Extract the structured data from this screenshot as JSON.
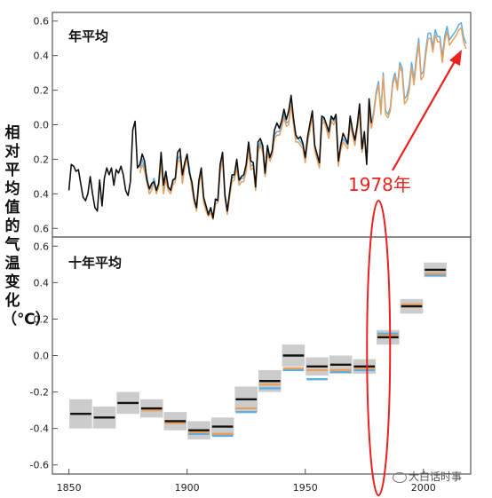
{
  "ylabel": "相对平均值的气温变化（℃）",
  "watermark": "大白话时事",
  "annotation": {
    "text": "1978年",
    "color": "#e8221e",
    "year": 1978
  },
  "chart_data": [
    {
      "type": "line",
      "title": "年平均",
      "x_range": [
        1843,
        2020
      ],
      "ylim": [
        -0.65,
        0.65
      ],
      "y_ticks": [
        0.6,
        0.4,
        0.2,
        0.0,
        -0.2,
        -0.4,
        -0.6
      ],
      "y_tick_labels": [
        "0.6",
        "0.4",
        "0.2",
        "0.0",
        "0.2",
        "0.4",
        "0.6"
      ],
      "grid": false,
      "series": [
        {
          "color": "#111111",
          "x": [
            1850,
            1851,
            1852,
            1853,
            1854,
            1855,
            1856,
            1857,
            1858,
            1859,
            1860,
            1861,
            1862,
            1863,
            1864,
            1865,
            1866,
            1867,
            1868,
            1869,
            1870,
            1871,
            1872,
            1873,
            1874,
            1875,
            1876,
            1877,
            1878,
            1879,
            1880,
            1881,
            1882,
            1883,
            1884,
            1885,
            1886,
            1887,
            1888,
            1889,
            1890,
            1891,
            1892,
            1893,
            1894,
            1895,
            1896,
            1897,
            1898,
            1899,
            1900,
            1901,
            1902,
            1903,
            1904,
            1905,
            1906,
            1907,
            1908,
            1909,
            1910,
            1911,
            1912,
            1913,
            1914,
            1915,
            1916,
            1917,
            1918,
            1919,
            1920,
            1921,
            1922,
            1923,
            1924,
            1925,
            1926,
            1927,
            1928,
            1929,
            1930,
            1931,
            1932,
            1933,
            1934,
            1935,
            1936,
            1937,
            1938,
            1939,
            1940,
            1941,
            1942,
            1943,
            1944,
            1945,
            1946,
            1947,
            1948,
            1949,
            1950,
            1951,
            1952,
            1953,
            1954,
            1955,
            1956,
            1957,
            1958,
            1959,
            1960,
            1961,
            1962,
            1963,
            1964,
            1965,
            1966,
            1967,
            1968,
            1969,
            1970,
            1971,
            1972,
            1973,
            1974,
            1975,
            1976,
            1977,
            1978
          ],
          "values": [
            -0.38,
            -0.23,
            -0.24,
            -0.27,
            -0.26,
            -0.34,
            -0.42,
            -0.44,
            -0.4,
            -0.3,
            -0.4,
            -0.48,
            -0.5,
            -0.32,
            -0.47,
            -0.31,
            -0.25,
            -0.29,
            -0.25,
            -0.35,
            -0.26,
            -0.28,
            -0.24,
            -0.29,
            -0.38,
            -0.41,
            -0.33,
            -0.03,
            0.02,
            -0.25,
            -0.23,
            -0.17,
            -0.21,
            -0.32,
            -0.37,
            -0.34,
            -0.33,
            -0.38,
            -0.34,
            -0.16,
            -0.35,
            -0.27,
            -0.36,
            -0.38,
            -0.32,
            -0.31,
            -0.16,
            -0.14,
            -0.29,
            -0.22,
            -0.17,
            -0.28,
            -0.33,
            -0.43,
            -0.48,
            -0.32,
            -0.25,
            -0.42,
            -0.47,
            -0.52,
            -0.48,
            -0.54,
            -0.43,
            -0.44,
            -0.23,
            -0.16,
            -0.41,
            -0.5,
            -0.39,
            -0.29,
            -0.29,
            -0.2,
            -0.32,
            -0.3,
            -0.29,
            -0.23,
            -0.1,
            -0.21,
            -0.22,
            -0.36,
            -0.1,
            -0.08,
            -0.12,
            -0.28,
            -0.12,
            -0.19,
            -0.15,
            -0.03,
            0.01,
            -0.02,
            0.02,
            0.09,
            0.03,
            0.08,
            0.17,
            0.04,
            -0.06,
            -0.08,
            -0.07,
            -0.11,
            -0.19,
            -0.07,
            0.01,
            0.08,
            -0.12,
            -0.17,
            -0.22,
            0.05,
            0.04,
            0.0,
            -0.04,
            0.05,
            0.03,
            0.06,
            -0.21,
            -0.12,
            -0.05,
            -0.08,
            -0.11,
            0.05,
            -0.03,
            -0.09,
            0.0,
            0.12,
            -0.14,
            -0.04,
            -0.23,
            0.15,
            0.01
          ]
        },
        {
          "color": "#e8a060",
          "x": [
            1880,
            1881,
            1882,
            1883,
            1884,
            1885,
            1886,
            1887,
            1888,
            1889,
            1890,
            1891,
            1892,
            1893,
            1894,
            1895,
            1896,
            1897,
            1898,
            1899,
            1900,
            1901,
            1902,
            1903,
            1904,
            1905,
            1906,
            1907,
            1908,
            1909,
            1910,
            1911,
            1912,
            1913,
            1914,
            1915,
            1916,
            1917,
            1918,
            1919,
            1920,
            1921,
            1922,
            1923,
            1924,
            1925,
            1926,
            1927,
            1928,
            1929,
            1930,
            1931,
            1932,
            1933,
            1934,
            1935,
            1936,
            1937,
            1938,
            1939,
            1940,
            1941,
            1942,
            1943,
            1944,
            1945,
            1946,
            1947,
            1948,
            1949,
            1950,
            1951,
            1952,
            1953,
            1954,
            1955,
            1956,
            1957,
            1958,
            1959,
            1960,
            1961,
            1962,
            1963,
            1964,
            1965,
            1966,
            1967,
            1968,
            1969,
            1970,
            1971,
            1972,
            1973,
            1974,
            1975,
            1976,
            1977,
            1978,
            1979,
            1980,
            1981,
            1982,
            1983,
            1984,
            1985,
            1986,
            1987,
            1988,
            1989,
            1990,
            1991,
            1992,
            1993,
            1994,
            1995,
            1996,
            1997,
            1998,
            1999,
            2000,
            2001,
            2002,
            2003,
            2004,
            2005,
            2006,
            2007,
            2008,
            2009,
            2010,
            2011,
            2012,
            2013,
            2014,
            2015,
            2016,
            2017,
            2018
          ],
          "values": [
            -0.28,
            -0.23,
            -0.27,
            -0.33,
            -0.4,
            -0.38,
            -0.33,
            -0.4,
            -0.36,
            -0.22,
            -0.4,
            -0.32,
            -0.38,
            -0.4,
            -0.35,
            -0.33,
            -0.22,
            -0.2,
            -0.34,
            -0.25,
            -0.2,
            -0.27,
            -0.37,
            -0.45,
            -0.5,
            -0.35,
            -0.28,
            -0.45,
            -0.5,
            -0.53,
            -0.51,
            -0.55,
            -0.46,
            -0.45,
            -0.28,
            -0.2,
            -0.42,
            -0.52,
            -0.42,
            -0.33,
            -0.32,
            -0.25,
            -0.35,
            -0.33,
            -0.33,
            -0.27,
            -0.15,
            -0.26,
            -0.25,
            -0.38,
            -0.16,
            -0.12,
            -0.16,
            -0.3,
            -0.17,
            -0.21,
            -0.18,
            -0.08,
            -0.06,
            -0.06,
            -0.02,
            0.04,
            -0.01,
            0.0,
            0.12,
            0.0,
            -0.1,
            -0.1,
            -0.12,
            -0.14,
            -0.22,
            -0.1,
            -0.03,
            0.05,
            -0.15,
            -0.2,
            -0.25,
            0.0,
            0.02,
            -0.03,
            -0.08,
            0.02,
            0.0,
            0.03,
            -0.24,
            -0.15,
            -0.1,
            -0.12,
            -0.14,
            0.0,
            -0.06,
            -0.12,
            -0.03,
            0.08,
            -0.16,
            -0.08,
            -0.22,
            0.08,
            -0.02,
            0.06,
            0.17,
            0.23,
            0.06,
            0.28,
            0.06,
            0.04,
            0.08,
            0.23,
            0.28,
            0.2,
            0.34,
            0.3,
            0.12,
            0.14,
            0.2,
            0.33,
            0.23,
            0.36,
            0.47,
            0.26,
            0.28,
            0.4,
            0.5,
            0.5,
            0.42,
            0.52,
            0.48,
            0.48,
            0.36,
            0.48,
            0.54,
            0.46,
            0.48,
            0.5,
            0.52,
            0.55,
            0.56,
            0.48,
            0.44
          ]
        },
        {
          "color": "#5aaee0",
          "x": [
            1880,
            1881,
            1882,
            1883,
            1884,
            1885,
            1886,
            1887,
            1888,
            1889,
            1890,
            1891,
            1892,
            1893,
            1894,
            1895,
            1896,
            1897,
            1898,
            1899,
            1900,
            1901,
            1902,
            1903,
            1904,
            1905,
            1906,
            1907,
            1908,
            1909,
            1910,
            1911,
            1912,
            1913,
            1914,
            1915,
            1916,
            1917,
            1918,
            1919,
            1920,
            1921,
            1922,
            1923,
            1924,
            1925,
            1926,
            1927,
            1928,
            1929,
            1930,
            1931,
            1932,
            1933,
            1934,
            1935,
            1936,
            1937,
            1938,
            1939,
            1940,
            1941,
            1942,
            1943,
            1944,
            1945,
            1946,
            1947,
            1948,
            1949,
            1950,
            1951,
            1952,
            1953,
            1954,
            1955,
            1956,
            1957,
            1958,
            1959,
            1960,
            1961,
            1962,
            1963,
            1964,
            1965,
            1966,
            1967,
            1968,
            1969,
            1970,
            1971,
            1972,
            1973,
            1974,
            1975,
            1976,
            1977,
            1978,
            1979,
            1980,
            1981,
            1982,
            1983,
            1984,
            1985,
            1986,
            1987,
            1988,
            1989,
            1990,
            1991,
            1992,
            1993,
            1994,
            1995,
            1996,
            1997,
            1998,
            1999,
            2000,
            2001,
            2002,
            2003,
            2004,
            2005,
            2006,
            2007,
            2008,
            2009,
            2010,
            2011,
            2012,
            2013,
            2014,
            2015,
            2016,
            2017,
            2018
          ],
          "values": [
            -0.25,
            -0.2,
            -0.25,
            -0.3,
            -0.38,
            -0.36,
            -0.31,
            -0.38,
            -0.34,
            -0.2,
            -0.38,
            -0.3,
            -0.36,
            -0.38,
            -0.33,
            -0.31,
            -0.2,
            -0.18,
            -0.32,
            -0.23,
            -0.18,
            -0.25,
            -0.35,
            -0.43,
            -0.48,
            -0.33,
            -0.26,
            -0.43,
            -0.48,
            -0.51,
            -0.49,
            -0.53,
            -0.44,
            -0.43,
            -0.26,
            -0.18,
            -0.4,
            -0.5,
            -0.4,
            -0.31,
            -0.3,
            -0.23,
            -0.33,
            -0.31,
            -0.31,
            -0.25,
            -0.13,
            -0.24,
            -0.23,
            -0.36,
            -0.14,
            -0.1,
            -0.14,
            -0.28,
            -0.15,
            -0.19,
            -0.16,
            -0.06,
            -0.04,
            -0.04,
            0.0,
            0.06,
            0.01,
            0.02,
            0.14,
            0.02,
            -0.08,
            -0.08,
            -0.1,
            -0.12,
            -0.2,
            -0.08,
            -0.01,
            0.07,
            -0.13,
            -0.18,
            -0.23,
            0.02,
            0.04,
            -0.01,
            -0.06,
            0.04,
            0.02,
            0.05,
            -0.22,
            -0.13,
            -0.08,
            -0.1,
            -0.12,
            0.02,
            -0.04,
            -0.1,
            -0.01,
            0.1,
            -0.14,
            -0.06,
            -0.2,
            0.1,
            0.0,
            0.08,
            0.19,
            0.25,
            0.08,
            0.3,
            0.08,
            0.06,
            0.1,
            0.25,
            0.3,
            0.22,
            0.36,
            0.33,
            0.15,
            0.17,
            0.23,
            0.36,
            0.26,
            0.39,
            0.5,
            0.29,
            0.31,
            0.43,
            0.53,
            0.53,
            0.45,
            0.55,
            0.51,
            0.51,
            0.39,
            0.51,
            0.57,
            0.49,
            0.51,
            0.53,
            0.55,
            0.58,
            0.59,
            0.51,
            0.47
          ]
        }
      ]
    },
    {
      "type": "bar",
      "title": "十年平均",
      "x_range": [
        1843,
        2020
      ],
      "ylim": [
        -0.65,
        0.65
      ],
      "y_ticks": [
        0.6,
        0.4,
        0.2,
        0.0,
        -0.2,
        -0.4,
        -0.6
      ],
      "y_tick_labels": [
        "0.6",
        "0.4",
        "0.2",
        "0.0",
        "-0.2",
        "-0.4",
        "-0.6"
      ],
      "x_ticks": [
        1850,
        1900,
        1950,
        2000
      ],
      "x_tick_labels": [
        "1850",
        "1900",
        "1950",
        "2000"
      ],
      "grid": false,
      "decades": [
        {
          "start": 1850,
          "end": 1860,
          "values": [
            -0.32
          ],
          "uncertainty": 0.08
        },
        {
          "start": 1860,
          "end": 1870,
          "values": [
            -0.34
          ],
          "uncertainty": 0.06
        },
        {
          "start": 1870,
          "end": 1880,
          "values": [
            -0.26
          ],
          "uncertainty": 0.06
        },
        {
          "start": 1880,
          "end": 1890,
          "values": [
            -0.29,
            -0.3
          ],
          "uncertainty": 0.05
        },
        {
          "start": 1890,
          "end": 1900,
          "values": [
            -0.36,
            -0.37
          ],
          "uncertainty": 0.05
        },
        {
          "start": 1900,
          "end": 1910,
          "values": [
            -0.41,
            -0.42,
            -0.43
          ],
          "uncertainty": 0.05
        },
        {
          "start": 1910,
          "end": 1920,
          "values": [
            -0.39,
            -0.43,
            -0.44
          ],
          "uncertainty": 0.05
        },
        {
          "start": 1920,
          "end": 1930,
          "values": [
            -0.24,
            -0.29,
            -0.31
          ],
          "uncertainty": 0.07
        },
        {
          "start": 1930,
          "end": 1940,
          "values": [
            -0.14,
            -0.16,
            -0.18
          ],
          "uncertainty": 0.06
        },
        {
          "start": 1940,
          "end": 1950,
          "values": [
            0.0,
            -0.07,
            -0.08
          ],
          "uncertainty": 0.06
        },
        {
          "start": 1950,
          "end": 1960,
          "values": [
            -0.06,
            -0.08,
            -0.13
          ],
          "uncertainty": 0.05
        },
        {
          "start": 1960,
          "end": 1970,
          "values": [
            -0.05,
            -0.08,
            -0.09
          ],
          "uncertainty": 0.05
        },
        {
          "start": 1970,
          "end": 1980,
          "values": [
            -0.06,
            -0.07,
            -0.08
          ],
          "uncertainty": 0.04
        },
        {
          "start": 1980,
          "end": 1990,
          "values": [
            0.1,
            0.11,
            0.12
          ],
          "uncertainty": 0.04
        },
        {
          "start": 1990,
          "end": 2000,
          "values": [
            0.27,
            0.28
          ],
          "uncertainty": 0.04
        },
        {
          "start": 2000,
          "end": 2010,
          "values": [
            0.47,
            0.45,
            0.44
          ],
          "uncertainty": 0.04
        }
      ],
      "series_colors": [
        "#111111",
        "#e8a060",
        "#5aaee0"
      ]
    }
  ]
}
